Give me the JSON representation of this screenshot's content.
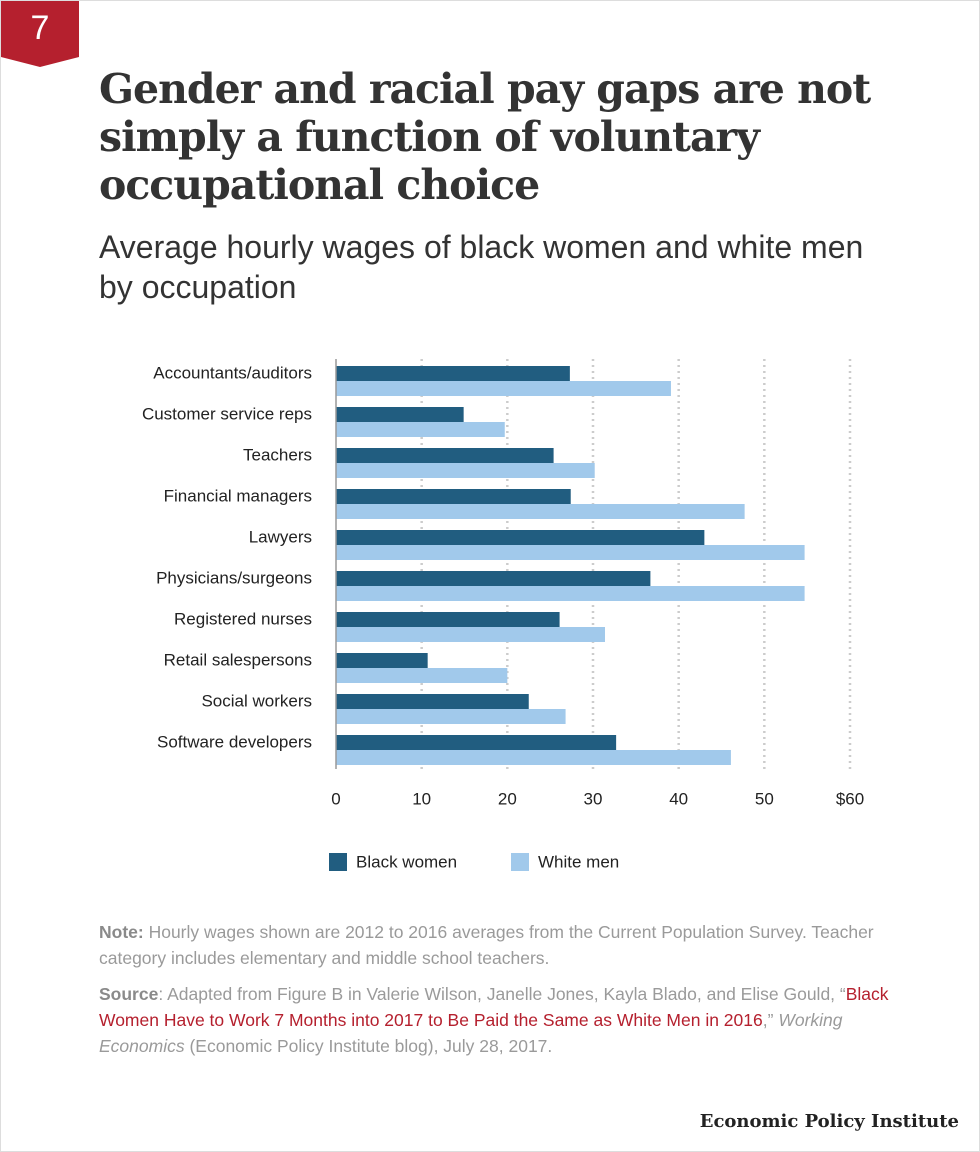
{
  "badge": "7",
  "chart_data": {
    "type": "bar",
    "orientation": "horizontal",
    "title": "Gender and racial pay gaps are not simply a function of voluntary occupational choice",
    "subtitle": "Average hourly wages of black women and white men by occupation",
    "categories": [
      "Accountants/auditors",
      "Customer service reps",
      "Teachers",
      "Financial managers",
      "Lawyers",
      "Physicians/surgeons",
      "Registered nurses",
      "Retail salespersons",
      "Social workers",
      "Software developers"
    ],
    "series": [
      {
        "name": "Black women",
        "color": "#215d80",
        "values": [
          27.3,
          14.9,
          25.4,
          27.4,
          43.0,
          36.7,
          26.1,
          10.7,
          22.5,
          32.7
        ]
      },
      {
        "name": "White men",
        "color": "#a1c9eb",
        "values": [
          39.1,
          19.7,
          30.2,
          47.7,
          54.7,
          54.7,
          31.4,
          20.0,
          26.8,
          46.1
        ]
      }
    ],
    "xlim": [
      0,
      60
    ],
    "xticks": [
      0,
      10,
      20,
      30,
      40,
      50,
      {
        "value": 60,
        "label": "$60"
      }
    ],
    "grid": true,
    "legend": "bottom"
  },
  "notes": {
    "note_label": "Note:",
    "note_text": " Hourly wages shown are 2012 to 2016 averages from the Current Population Survey. Teacher category includes elementary and middle school teachers.",
    "source_label": "Source",
    "source_text": ": Adapted from Figure B in Valerie Wilson, Janelle Jones, Kayla Blado, and Elise Gould, “",
    "source_link": "Black Women Have to Work 7 Months into 2017 to Be Paid the Same as White Men in 2016",
    "source_text2": ",” ",
    "source_italic": "Working Economics",
    "source_text3": " (Economic Policy Institute blog), July 28, 2017."
  },
  "footer": "Economic Policy Institute"
}
